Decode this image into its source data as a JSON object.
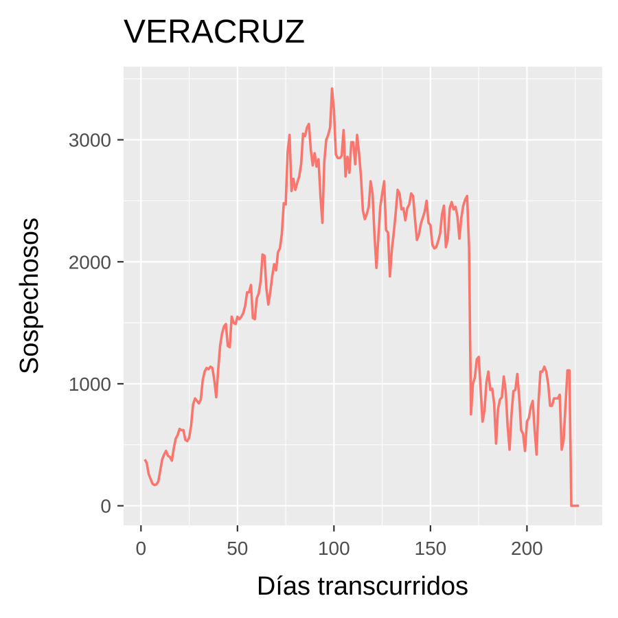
{
  "chart_data": {
    "type": "line",
    "title": "VERACRUZ",
    "xlabel": "Días transcurridos",
    "ylabel": "Sospechosos",
    "xlim": [
      -9,
      239
    ],
    "ylim": [
      -160,
      3600
    ],
    "x_ticks": [
      0,
      50,
      100,
      150,
      200
    ],
    "y_ticks": [
      0,
      1000,
      2000,
      3000
    ],
    "x_tick_labels": [
      "0",
      "50",
      "100",
      "150",
      "200"
    ],
    "y_tick_labels": [
      "0",
      "1000",
      "2000",
      "3000"
    ],
    "grid": true,
    "legend": "none",
    "colors": {
      "line": "#F8766D",
      "panel": "#EBEBEB",
      "grid": "#FFFFFF",
      "ticks": "#333333"
    },
    "series": [
      {
        "x": [
          2,
          3,
          4,
          5,
          6,
          7,
          8,
          9,
          10,
          11,
          12,
          13,
          14,
          15,
          16,
          17,
          18,
          19,
          20,
          21,
          22,
          23,
          24,
          25,
          26,
          27,
          28,
          29,
          30,
          31,
          32,
          33,
          34,
          35,
          36,
          37,
          38,
          39,
          40,
          41,
          42,
          43,
          44,
          45,
          46,
          47,
          48,
          49,
          50,
          51,
          52,
          53,
          54,
          55,
          56,
          57,
          58,
          59,
          60,
          61,
          62,
          63,
          64,
          65,
          66,
          67,
          68,
          69,
          70,
          71,
          72,
          73,
          74,
          75,
          76,
          77,
          78,
          79,
          80,
          81,
          82,
          83,
          84,
          85,
          86,
          87,
          88,
          89,
          90,
          91,
          92,
          93,
          94,
          95,
          96,
          97,
          98,
          99,
          100,
          101,
          102,
          103,
          104,
          105,
          106,
          107,
          108,
          109,
          110,
          111,
          112,
          113,
          114,
          115,
          116,
          117,
          118,
          119,
          120,
          121,
          122,
          123,
          124,
          125,
          126,
          127,
          128,
          129,
          130,
          131,
          132,
          133,
          134,
          135,
          136,
          137,
          138,
          139,
          140,
          141,
          142,
          143,
          144,
          145,
          146,
          147,
          148,
          149,
          150,
          151,
          152,
          153,
          154,
          155,
          156,
          157,
          158,
          159,
          160,
          161,
          162,
          163,
          164,
          165,
          166,
          167,
          168,
          169,
          170,
          171,
          172,
          173,
          174,
          175,
          176,
          177,
          178,
          179,
          180,
          181,
          182,
          183,
          184,
          185,
          186,
          187,
          188,
          189,
          190,
          191,
          192,
          193,
          194,
          195,
          196,
          197,
          198,
          199,
          200,
          201,
          202,
          203,
          204,
          205,
          206,
          207,
          208,
          209,
          210,
          211,
          212,
          213,
          214,
          215,
          216,
          217,
          218,
          219,
          220,
          221,
          222,
          223,
          224,
          225,
          226,
          227
        ],
        "y": [
          380,
          350,
          260,
          220,
          180,
          170,
          175,
          200,
          290,
          380,
          420,
          450,
          410,
          400,
          370,
          470,
          550,
          580,
          630,
          620,
          620,
          540,
          530,
          560,
          660,
          830,
          880,
          860,
          840,
          870,
          1030,
          1100,
          1130,
          1120,
          1140,
          1130,
          1030,
          890,
          1110,
          1310,
          1410,
          1470,
          1490,
          1310,
          1300,
          1550,
          1500,
          1490,
          1550,
          1530,
          1550,
          1580,
          1640,
          1750,
          1750,
          1810,
          1540,
          1530,
          1700,
          1740,
          1840,
          2060,
          2050,
          1780,
          1650,
          1750,
          1880,
          1980,
          1930,
          2080,
          2110,
          2230,
          2480,
          2470,
          2900,
          3040,
          2580,
          2680,
          2590,
          2650,
          2700,
          2800,
          3050,
          3030,
          3100,
          3130,
          2920,
          2790,
          2890,
          2780,
          2840,
          2540,
          2320,
          2820,
          3000,
          3040,
          3100,
          3420,
          3240,
          2880,
          2850,
          2850,
          2870,
          3080,
          2700,
          2860,
          2730,
          2980,
          2980,
          2800,
          3040,
          2890,
          2700,
          2420,
          2350,
          2390,
          2450,
          2660,
          2560,
          2220,
          1950,
          2200,
          2450,
          2560,
          2660,
          2260,
          2240,
          1880,
          2100,
          2240,
          2400,
          2590,
          2560,
          2430,
          2440,
          2340,
          2440,
          2470,
          2560,
          2540,
          2350,
          2180,
          2220,
          2310,
          2360,
          2410,
          2500,
          2320,
          2300,
          2140,
          2110,
          2120,
          2170,
          2230,
          2390,
          2460,
          2120,
          2190,
          2440,
          2490,
          2430,
          2450,
          2370,
          2190,
          2360,
          2460,
          2510,
          2540,
          2120,
          750,
          1000,
          1050,
          1200,
          1220,
          960,
          690,
          780,
          1010,
          1100,
          950,
          960,
          840,
          510,
          790,
          870,
          890,
          1060,
          940,
          650,
          460,
          750,
          940,
          950,
          1080,
          890,
          620,
          590,
          450,
          690,
          720,
          810,
          860,
          620,
          420,
          850,
          1100,
          1100,
          1140,
          1100,
          1000,
          820,
          820,
          880,
          880,
          880,
          910,
          460,
          540,
          830,
          1110,
          1110,
          0,
          0,
          0,
          0,
          0
        ]
      }
    ]
  }
}
